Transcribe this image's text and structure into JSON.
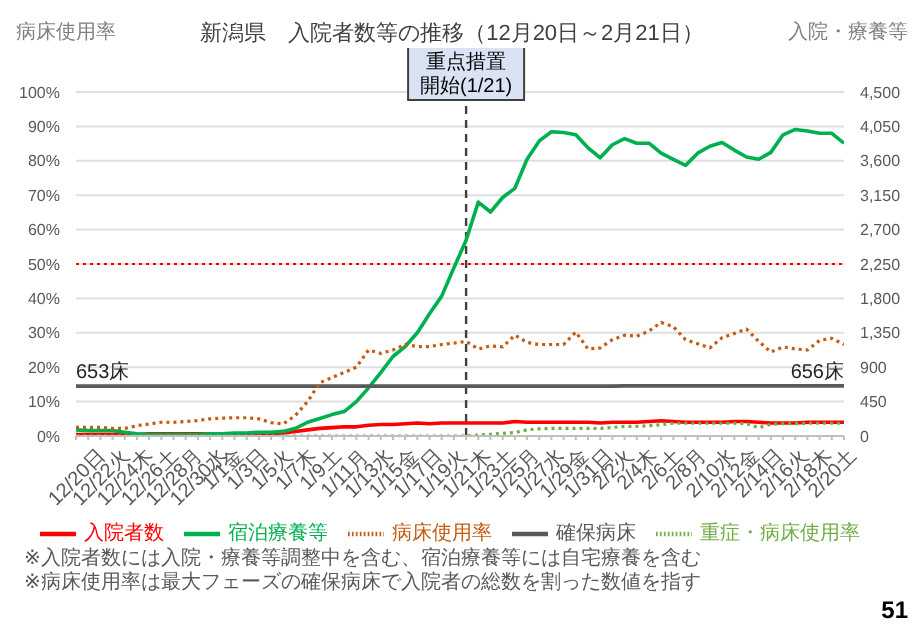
{
  "chart_data": {
    "type": "line",
    "title": "新潟県　入院者数等の推移（12月20日～2月21日）",
    "ylabel": "病床使用率",
    "y2label": "入院・療養等",
    "categories": [
      "12/20日",
      null,
      "12/22火",
      null,
      "12/24木",
      null,
      "12/26土",
      null,
      "12/28月",
      null,
      "12/30水",
      null,
      "1/1金",
      null,
      "1/3日",
      null,
      "1/5火",
      null,
      "1/7木",
      null,
      "1/9土",
      null,
      "1/11月",
      null,
      "1/13水",
      null,
      "1/15金",
      null,
      "1/17日",
      null,
      "1/19火",
      null,
      "1/21木",
      null,
      "1/23土",
      null,
      "1/25月",
      null,
      "1/27水",
      null,
      "1/29金",
      null,
      "1/31日",
      null,
      "2/2火",
      null,
      "2/4木",
      null,
      "2/6土",
      null,
      "2/8月",
      null,
      "2/10水",
      null,
      "2/12金",
      null,
      "2/14日",
      null,
      "2/16火",
      null,
      "2/18木",
      null,
      "2/20土",
      null
    ],
    "series": [
      {
        "name": "入院者数",
        "color": "#ff0000",
        "axis": "y2",
        "line_style": "solid",
        "values": [
          20,
          20,
          20,
          20,
          20,
          20,
          30,
          30,
          30,
          30,
          30,
          30,
          30,
          30,
          30,
          30,
          30,
          40,
          60,
          80,
          100,
          110,
          120,
          120,
          140,
          150,
          150,
          160,
          170,
          160,
          170,
          170,
          170,
          170,
          170,
          170,
          190,
          180,
          180,
          180,
          180,
          180,
          180,
          170,
          180,
          180,
          180,
          190,
          200,
          190,
          180,
          180,
          180,
          180,
          190,
          190,
          180,
          170,
          170,
          170,
          180,
          180,
          180,
          180
        ]
      },
      {
        "name": "宿泊療養等",
        "color": "#00b050",
        "axis": "y2",
        "line_style": "solid",
        "values": [
          80,
          70,
          70,
          70,
          50,
          30,
          20,
          20,
          20,
          20,
          20,
          30,
          30,
          40,
          40,
          50,
          50,
          60,
          100,
          180,
          230,
          280,
          320,
          450,
          630,
          830,
          1040,
          1170,
          1350,
          1600,
          1830,
          2200,
          2560,
          3060,
          2930,
          3120,
          3240,
          3620,
          3860,
          3980,
          3970,
          3940,
          3770,
          3640,
          3810,
          3890,
          3830,
          3830,
          3700,
          3620,
          3540,
          3700,
          3790,
          3840,
          3740,
          3650,
          3620,
          3710,
          3940,
          4010,
          3990,
          3960,
          3960,
          3830
        ]
      },
      {
        "name": "確保病床",
        "color": "#595959",
        "axis": "y2",
        "line_style": "solid",
        "values": [
          653,
          653,
          653,
          653,
          653,
          653,
          653,
          653,
          653,
          653,
          653,
          653,
          653,
          653,
          653,
          653,
          653,
          653,
          653,
          653,
          653,
          653,
          653,
          653,
          653,
          653,
          653,
          653,
          653,
          653,
          653,
          653,
          653,
          653,
          653,
          653,
          653,
          653,
          653,
          653,
          653,
          653,
          653,
          653,
          653,
          656,
          656,
          656,
          656,
          656,
          656,
          656,
          656,
          656,
          656,
          656,
          656,
          656,
          656,
          656,
          656,
          656,
          656,
          656
        ],
        "value_labels": [
          "653床",
          null,
          null,
          null,
          null,
          null,
          null,
          null,
          null,
          null,
          null,
          null,
          null,
          null,
          null,
          null,
          null,
          null,
          null,
          null,
          null,
          null,
          null,
          null,
          null,
          null,
          null,
          null,
          null,
          null,
          null,
          null,
          null,
          null,
          null,
          null,
          null,
          null,
          null,
          null,
          null,
          null,
          null,
          null,
          null,
          null,
          null,
          null,
          null,
          null,
          null,
          null,
          null,
          null,
          null,
          null,
          null,
          null,
          null,
          null,
          null,
          null,
          null,
          "656床"
        ]
      },
      {
        "name": "病床使用率",
        "color": "#c55a11",
        "axis": "y",
        "line_style": "dotted",
        "values": [
          2.5,
          2.5,
          2.5,
          2.2,
          2.2,
          3,
          3.5,
          4,
          4,
          4.2,
          4.5,
          5,
          5.2,
          5.3,
          5.3,
          5,
          3.9,
          3.5,
          6,
          10,
          15.5,
          17,
          18.5,
          20,
          25,
          24,
          25,
          26.6,
          26,
          26,
          26.6,
          27,
          27.5,
          25.3,
          26.2,
          25.9,
          29.3,
          27.2,
          26.6,
          26.6,
          26.6,
          30.2,
          25.3,
          25.6,
          28,
          29.3,
          29,
          30.5,
          33,
          31.8,
          28,
          26.8,
          25.6,
          28.6,
          29.8,
          31.1,
          27.5,
          24.4,
          25.9,
          25.3,
          25,
          27.8,
          28.4,
          26.6
        ]
      },
      {
        "name": "重症・病床使用率",
        "color": "#70ad47",
        "axis": "y",
        "line_style": "dotted",
        "values": [
          0,
          0,
          0,
          0,
          0,
          0,
          0,
          0,
          0,
          0,
          0,
          0,
          0,
          0,
          0,
          0,
          0,
          0,
          0,
          0,
          0,
          0,
          0,
          0,
          0,
          0,
          0,
          0,
          0,
          0,
          0,
          0,
          0,
          0.3,
          0.5,
          0.8,
          1,
          1.8,
          2.1,
          2.2,
          2.2,
          2.2,
          2.2,
          2.2,
          2.5,
          2.8,
          2.8,
          3,
          3.3,
          3.7,
          3.7,
          3.7,
          3.7,
          3.7,
          3.7,
          3.6,
          2.4,
          3.4,
          3.6,
          3.6,
          3.7,
          3.7,
          3.7,
          3.7
        ]
      }
    ],
    "ylim": [
      0,
      100
    ],
    "yticks": [
      {
        "value": 0,
        "label": "0%"
      },
      {
        "value": 10,
        "label": "10%"
      },
      {
        "value": 20,
        "label": "20%"
      },
      {
        "value": 30,
        "label": "30%"
      },
      {
        "value": 40,
        "label": "40%"
      },
      {
        "value": 50,
        "label": "50%"
      },
      {
        "value": 60,
        "label": "60%"
      },
      {
        "value": 70,
        "label": "70%"
      },
      {
        "value": 80,
        "label": "80%"
      },
      {
        "value": 90,
        "label": "90%"
      },
      {
        "value": 100,
        "label": "100%"
      }
    ],
    "y2lim": [
      0,
      4500
    ],
    "y2ticks": [
      0,
      450,
      900,
      {
        "value": 1350,
        "label": "1,350"
      },
      {
        "value": 1800,
        "label": "1,800"
      },
      {
        "value": 2250,
        "label": "2,250"
      },
      {
        "value": 2700,
        "label": "2,700"
      },
      {
        "value": 3150,
        "label": "3,150"
      },
      {
        "value": 3600,
        "label": "3,600"
      },
      {
        "value": 4050,
        "label": "4,050"
      },
      {
        "value": 4500,
        "label": "4,500"
      }
    ],
    "ref_lines": [
      {
        "axis": "y",
        "value": 50,
        "color": "#ff0000",
        "line_style": "dotted"
      },
      {
        "axis": "x",
        "value": "1/21木",
        "label": "重点措置開始(1/21)",
        "color": "#404040",
        "line_style": "dashed"
      }
    ],
    "grid": "y",
    "legend": "bottom",
    "marker": "none",
    "annotations": [
      "※入院者数には入院・療養等調整中を含む、宿泊療養等には自宅療養を含む",
      "※病床使用率は最大フェーズの確保病床で入院者の総数を割った数値を指す",
      "51"
    ]
  }
}
